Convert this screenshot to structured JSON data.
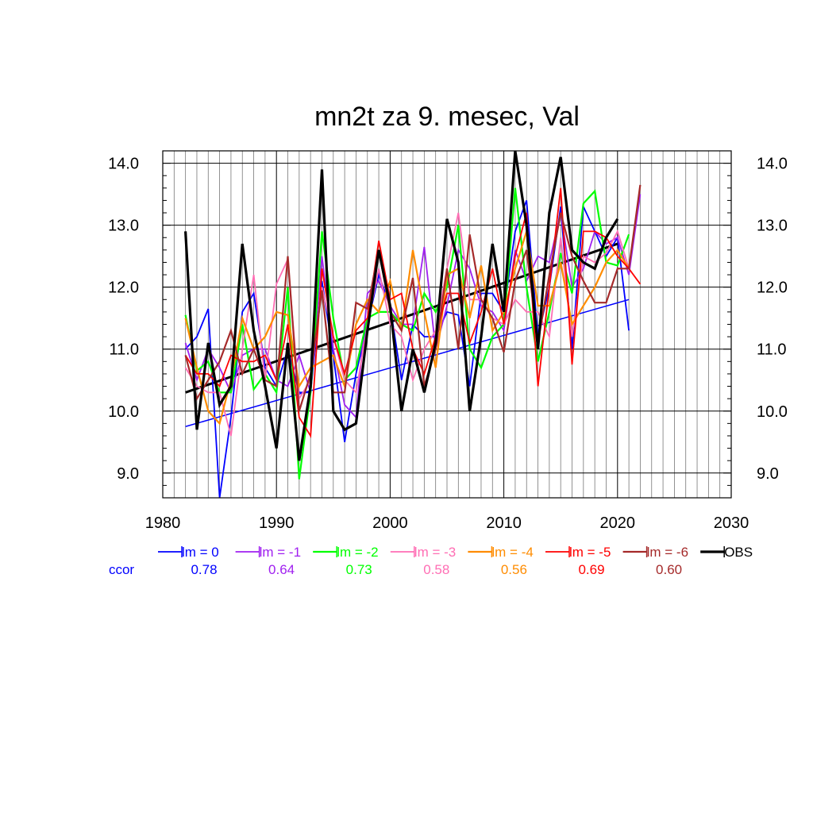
{
  "chart_data": {
    "type": "line",
    "title": "mn2t za 9. mesec, Val",
    "xlim": [
      1980,
      2030
    ],
    "ylim": [
      8.6,
      14.2
    ],
    "x_ticks": [
      "1980",
      "1990",
      "2000",
      "2010",
      "2020",
      "2030"
    ],
    "y_ticks": [
      "9.0",
      "10.0",
      "11.0",
      "12.0",
      "13.0",
      "14.0"
    ],
    "grid": true,
    "legend_position": "bottom",
    "ccor_label": "ccor",
    "years": [
      1982,
      1983,
      1984,
      1985,
      1986,
      1987,
      1988,
      1989,
      1990,
      1991,
      1992,
      1993,
      1994,
      1995,
      1996,
      1997,
      1998,
      1999,
      2000,
      2001,
      2002,
      2003,
      2004,
      2005,
      2006,
      2007,
      2008,
      2009,
      2010,
      2011,
      2012,
      2013,
      2014,
      2015,
      2016,
      2017,
      2018,
      2019,
      2020,
      2021,
      2022
    ],
    "series": [
      {
        "name": "lm = 0",
        "ccor": "0.78",
        "color": "#0000ff",
        "width": 1.8,
        "values": [
          11.0,
          11.2,
          11.65,
          8.6,
          9.9,
          11.6,
          11.9,
          10.7,
          10.4,
          11.0,
          10.3,
          10.3,
          12.1,
          10.9,
          9.5,
          10.6,
          11.4,
          12.2,
          11.7,
          10.5,
          11.4,
          11.2,
          11.2,
          11.6,
          11.55,
          10.4,
          11.9,
          11.9,
          11.6,
          12.9,
          13.4,
          11.2,
          12.0,
          13.3,
          11.0,
          13.3,
          12.9,
          12.5,
          12.8,
          11.3,
          null
        ]
      },
      {
        "name": "lm = -1",
        "ccor": "0.64",
        "color": "#a020f0",
        "width": 1.8,
        "values": [
          11.1,
          10.5,
          11.0,
          10.7,
          10.3,
          10.9,
          11.0,
          11.0,
          10.5,
          10.4,
          10.9,
          10.3,
          12.5,
          11.0,
          10.1,
          9.9,
          11.9,
          12.1,
          11.7,
          11.4,
          11.4,
          12.65,
          11.0,
          11.7,
          12.6,
          12.3,
          11.7,
          11.6,
          11.3,
          12.6,
          12.1,
          12.5,
          12.4,
          13.2,
          12.0,
          12.3,
          12.9,
          12.7,
          12.8,
          12.2,
          13.5
        ]
      },
      {
        "name": "lm = -2",
        "ccor": "0.73",
        "color": "#00ff00",
        "width": 2.2,
        "values": [
          11.55,
          10.65,
          10.8,
          10.3,
          10.3,
          11.4,
          10.35,
          10.6,
          10.3,
          12.0,
          8.9,
          10.3,
          12.9,
          11.5,
          10.5,
          10.7,
          11.5,
          11.6,
          11.6,
          11.4,
          11.3,
          11.9,
          11.6,
          12.0,
          13.0,
          11.0,
          10.7,
          11.2,
          11.4,
          13.6,
          12.0,
          10.8,
          11.6,
          12.55,
          11.9,
          13.35,
          13.55,
          12.4,
          12.35,
          12.85,
          null
        ]
      },
      {
        "name": "lm = -3",
        "ccor": "0.58",
        "color": "#ff6eb4",
        "width": 1.8,
        "values": [
          10.7,
          10.4,
          10.3,
          10.3,
          9.6,
          11.0,
          12.2,
          10.5,
          12.05,
          12.45,
          10.2,
          10.5,
          12.0,
          11.2,
          10.5,
          10.3,
          11.4,
          12.3,
          11.4,
          11.2,
          10.5,
          11.0,
          11.3,
          12.3,
          13.2,
          11.8,
          11.8,
          11.5,
          11.4,
          11.8,
          11.6,
          11.6,
          11.2,
          12.8,
          11.2,
          12.5,
          12.4,
          12.55,
          12.9,
          12.3,
          null
        ]
      },
      {
        "name": "lm = -4",
        "ccor": "0.56",
        "color": "#ff8c00",
        "width": 2.2,
        "values": [
          11.5,
          10.7,
          10.0,
          9.8,
          10.5,
          11.5,
          11.0,
          11.2,
          11.6,
          11.55,
          10.4,
          10.7,
          10.8,
          10.9,
          10.4,
          11.4,
          11.8,
          11.6,
          12.1,
          11.3,
          12.6,
          11.6,
          10.7,
          12.2,
          12.3,
          11.5,
          12.35,
          11.3,
          11.6,
          12.3,
          12.9,
          11.7,
          11.7,
          12.4,
          11.4,
          11.7,
          12.0,
          12.4,
          12.6,
          12.3,
          null
        ]
      },
      {
        "name": "lm = -5",
        "ccor": "0.69",
        "color": "#ff0000",
        "width": 1.8,
        "values": [
          10.9,
          10.6,
          10.6,
          10.4,
          10.9,
          10.8,
          10.8,
          10.9,
          10.5,
          11.4,
          9.9,
          9.6,
          12.3,
          11.2,
          10.6,
          11.3,
          11.5,
          12.75,
          11.8,
          11.9,
          11.0,
          10.6,
          11.2,
          11.9,
          11.9,
          11.1,
          11.6,
          12.3,
          11.4,
          12.5,
          13.2,
          10.4,
          12.0,
          13.6,
          10.75,
          12.9,
          12.9,
          12.8,
          12.5,
          12.3,
          12.05
        ]
      },
      {
        "name": "lm = -6",
        "ccor": "0.60",
        "color": "#a52a2a",
        "width": 2.2,
        "values": [
          10.9,
          10.2,
          10.5,
          10.8,
          11.3,
          10.6,
          11.0,
          10.5,
          10.4,
          12.5,
          10.0,
          10.6,
          11.95,
          10.3,
          10.3,
          11.75,
          11.65,
          12.6,
          11.6,
          11.3,
          12.15,
          10.4,
          11.0,
          12.3,
          11.0,
          12.85,
          11.8,
          11.5,
          10.95,
          12.1,
          12.6,
          11.1,
          12.2,
          13.2,
          12.5,
          12.1,
          11.75,
          11.75,
          12.3,
          12.3,
          13.65
        ]
      },
      {
        "name": "OBS",
        "ccor": "",
        "color": "#000000",
        "width": 3.2,
        "values": [
          12.9,
          9.7,
          11.1,
          10.1,
          10.4,
          12.7,
          11.3,
          10.4,
          9.4,
          11.1,
          9.2,
          10.4,
          13.9,
          10.0,
          9.7,
          9.8,
          11.3,
          12.6,
          11.7,
          10.0,
          11.0,
          10.3,
          11.1,
          13.1,
          12.4,
          10.0,
          11.2,
          12.7,
          11.6,
          14.2,
          13.0,
          11.0,
          13.2,
          14.1,
          12.6,
          12.4,
          12.3,
          12.8,
          13.1,
          null,
          null
        ]
      }
    ],
    "trend_lines": [
      {
        "color": "#0000ff",
        "width": 1.5,
        "from": [
          1982,
          9.75
        ],
        "to": [
          2021,
          11.8
        ]
      },
      {
        "color": "#000000",
        "width": 3.0,
        "from": [
          1982,
          10.3
        ],
        "to": [
          2020,
          12.7
        ]
      }
    ]
  }
}
